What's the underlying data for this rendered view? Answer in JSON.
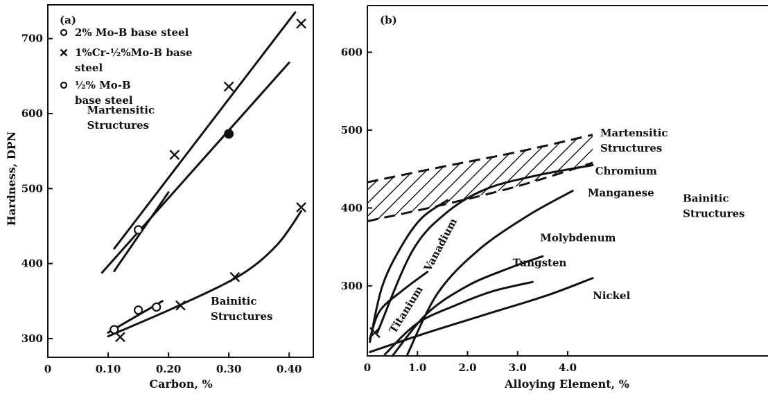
{
  "chart_data": [
    {
      "type": "scatter",
      "panel_label": "(a)",
      "xlabel": "Carbon, %",
      "ylabel": "Hardness, DPN",
      "xlim": [
        0,
        0.44
      ],
      "ylim": [
        275,
        745
      ],
      "xticks": [
        0,
        0.1,
        0.2,
        0.3,
        0.4
      ],
      "xtick_labels": [
        "0",
        "0.10",
        "0.20",
        "0.30",
        "0.40"
      ],
      "yticks": [
        300,
        400,
        500,
        600,
        700
      ],
      "ytick_labels": [
        "300",
        "400",
        "500",
        "600",
        "700"
      ],
      "legend": [
        {
          "marker": "o",
          "text": "2% Mo-B base steel"
        },
        {
          "marker": "x",
          "text": "1%Cr-½%Mo-B base",
          "text2": "steel"
        },
        {
          "marker": "o",
          "text": "½% Mo-B",
          "text2": "base steel"
        }
      ],
      "annotations": [
        {
          "lines": [
            "Martensitic",
            "Structures"
          ],
          "x": 0.065,
          "y": 600
        },
        {
          "lines": [
            "Bainitic",
            "Structures"
          ],
          "x": 0.27,
          "y": 345
        }
      ],
      "series": [
        {
          "name": "1%Cr-½%Mo-B base steel",
          "marker": "x",
          "points": [
            [
              0.12,
              302
            ],
            [
              0.21,
              545
            ],
            [
              0.22,
              344
            ],
            [
              0.3,
              636
            ],
            [
              0.31,
              382
            ],
            [
              0.42,
              720
            ],
            [
              0.42,
              475
            ]
          ]
        },
        {
          "name": "2% Mo-B base steel",
          "marker": "o",
          "points": [
            [
              0.15,
              445
            ],
            [
              0.15,
              338
            ],
            [
              0.18,
              342
            ],
            [
              0.11,
              312
            ]
          ]
        },
        {
          "name": "½% Mo-B base steel",
          "marker": "filled-circle",
          "points": [
            [
              0.3,
              573
            ]
          ]
        }
      ],
      "lines": [
        {
          "points": [
            [
              0.11,
              420
            ],
            [
              0.41,
              735
            ]
          ]
        },
        {
          "points": [
            [
              0.09,
              388
            ],
            [
              0.4,
              668
            ]
          ]
        },
        {
          "points": [
            [
              0.11,
              390
            ],
            [
              0.2,
              495
            ]
          ]
        },
        {
          "points": [
            [
              0.1,
              303
            ],
            [
              0.22,
              345
            ],
            [
              0.32,
              385
            ],
            [
              0.38,
              425
            ],
            [
              0.42,
              470
            ]
          ]
        },
        {
          "points": [
            [
              0.1,
              308
            ],
            [
              0.19,
              350
            ]
          ]
        }
      ]
    },
    {
      "type": "line",
      "panel_label": "(b)",
      "xlabel": "Alloying Element, %",
      "ylabel": "",
      "xlim": [
        0,
        8.0
      ],
      "ylim": [
        210,
        660
      ],
      "xticks": [
        0,
        1.0,
        2.0,
        3.0,
        4.0
      ],
      "xtick_labels": [
        "0",
        "1.0",
        "2.0",
        "3.0",
        "4.0"
      ],
      "yticks": [
        300,
        400,
        500,
        600
      ],
      "ytick_labels": [
        "300",
        "400",
        "500",
        "600"
      ],
      "band": {
        "name": "Martensitic Structures",
        "upper": [
          [
            0,
            433
          ],
          [
            1.5,
            453
          ],
          [
            3.0,
            472
          ],
          [
            4.5,
            494
          ]
        ],
        "lower": [
          [
            0,
            383
          ],
          [
            1.5,
            404
          ],
          [
            3.0,
            428
          ],
          [
            4.5,
            458
          ]
        ]
      },
      "annotations": [
        {
          "lines": [
            "Martensitic",
            "Structures"
          ],
          "x": 4.65,
          "y": 492
        },
        {
          "lines": [
            "Bainitic",
            "Structures"
          ],
          "x": 6.3,
          "y": 408
        }
      ],
      "series": [
        {
          "name": "Chromium",
          "label_at": [
            4.55,
            443
          ],
          "label_angle": 0,
          "points": [
            [
              0.2,
              240
            ],
            [
              0.9,
              345
            ],
            [
              1.6,
              395
            ],
            [
              2.4,
              425
            ],
            [
              3.4,
              442
            ],
            [
              4.5,
              455
            ]
          ]
        },
        {
          "name": "Manganese",
          "label_at": [
            4.4,
            415
          ],
          "label_angle": 0,
          "points": [
            [
              0.8,
              212
            ],
            [
              1.4,
              290
            ],
            [
              2.2,
              345
            ],
            [
              3.2,
              390
            ],
            [
              4.1,
              422
            ]
          ]
        },
        {
          "name": "Vanadium",
          "label_at": [
            1.25,
            318
          ],
          "label_angle": -62,
          "points": [
            [
              0.05,
              228
            ],
            [
              0.3,
              300
            ],
            [
              0.7,
              353
            ],
            [
              1.1,
              388
            ],
            [
              1.6,
              410
            ]
          ]
        },
        {
          "name": "Molybdenum",
          "label_at": [
            3.45,
            357
          ],
          "label_angle": 0,
          "points": [
            [
              0.5,
              210
            ],
            [
              1.2,
              265
            ],
            [
              2.0,
              300
            ],
            [
              2.8,
              322
            ],
            [
              3.5,
              338
            ]
          ]
        },
        {
          "name": "Tungsten",
          "label_at": [
            2.9,
            325
          ],
          "label_angle": 0,
          "points": [
            [
              0.35,
              212
            ],
            [
              1.0,
              252
            ],
            [
              1.8,
              276
            ],
            [
              2.5,
              293
            ],
            [
              3.3,
              305
            ]
          ]
        },
        {
          "name": "Titanium",
          "label_at": [
            0.55,
            238
          ],
          "label_angle": -58,
          "points": [
            [
              0.05,
              232
            ],
            [
              0.25,
              268
            ],
            [
              0.7,
              294
            ],
            [
              1.2,
              318
            ]
          ]
        },
        {
          "name": "Nickel",
          "label_at": [
            4.5,
            283
          ],
          "label_angle": 0,
          "points": [
            [
              0.05,
              215
            ],
            [
              1.2,
              240
            ],
            [
              2.4,
              264
            ],
            [
              3.6,
              288
            ],
            [
              4.5,
              310
            ]
          ]
        }
      ],
      "markers": [
        {
          "marker": "x",
          "points": [
            [
              0.15,
              240
            ]
          ]
        }
      ]
    }
  ]
}
